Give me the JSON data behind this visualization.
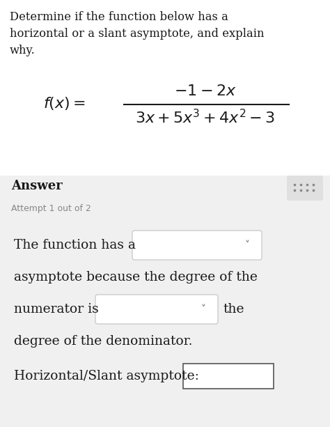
{
  "bg_color": "#ffffff",
  "answer_bg": "#f0f0f0",
  "text_color": "#1a1a1a",
  "gray_text": "#888888",
  "dropdown_color": "#ffffff",
  "dropdown_border": "#cccccc",
  "input_border": "#555555",
  "icon_bg": "#e0e0e0",
  "title_line1": "Determine if the function below has a",
  "title_line2": "horizontal or a slant asymptote, and explain",
  "title_line3": "why.",
  "answer_label": "Answer",
  "attempt_text": "Attempt 1 out of 2",
  "line1": "The function has a",
  "line2": "asymptote because the degree of the",
  "line3": "numerator is",
  "line3b": "the",
  "line4": "degree of the denominator.",
  "line5": "Horizontal/Slant asymptote:"
}
